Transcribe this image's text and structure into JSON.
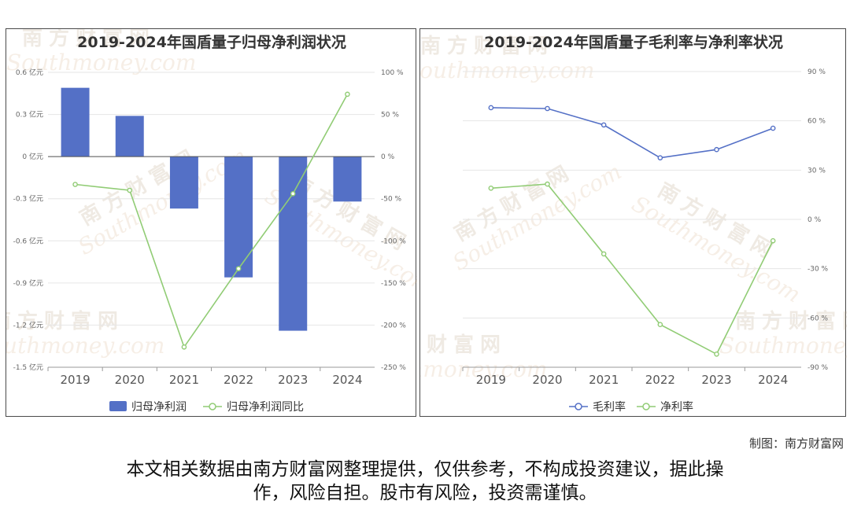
{
  "charts": [
    {
      "title": "2019-2024年国盾量子归母净利润状况",
      "legend_placement": "bottom",
      "colors": {
        "bar": "#5470c6",
        "line": "#91cc75"
      },
      "chart_data": {
        "type": "bar+line",
        "categories": [
          "2019",
          "2020",
          "2021",
          "2022",
          "2023",
          "2024"
        ],
        "series": [
          {
            "name": "归母净利润",
            "type": "bar",
            "axis": "left",
            "values": [
              0.49,
              0.29,
              -0.37,
              -0.86,
              -1.24,
              -0.32
            ]
          },
          {
            "name": "归母净利润同比",
            "type": "line",
            "axis": "right",
            "values": [
              -33,
              -40,
              -226,
              -133,
              -44,
              74
            ]
          }
        ],
        "y_left": {
          "min": -1.5,
          "max": 0.6,
          "ticks": [
            "0.6 亿元",
            "0.3 亿元",
            "0 亿元",
            "-0.3 亿元",
            "-0.6 亿元",
            "-0.9 亿元",
            "-1.2 亿元",
            "-1.5 亿元"
          ]
        },
        "y_right": {
          "min": -250,
          "max": 100,
          "ticks": [
            "100 %",
            "50 %",
            "0 %",
            "-50 %",
            "-100 %",
            "-150 %",
            "-200 %",
            "-250 %"
          ]
        },
        "grid": true
      }
    },
    {
      "title": "2019-2024年国盾量子毛利率与净利率状况",
      "legend_placement": "bottom",
      "colors": {
        "gross": "#5470c6",
        "net": "#91cc75"
      },
      "chart_data": {
        "type": "line",
        "categories": [
          "2019",
          "2020",
          "2021",
          "2022",
          "2023",
          "2024"
        ],
        "series": [
          {
            "name": "毛利率",
            "values": [
              68,
              67.5,
              57.5,
              37.5,
              42.5,
              55.5
            ]
          },
          {
            "name": "净利率",
            "values": [
              19,
              21.5,
              -21,
              -64,
              -82,
              -13
            ]
          }
        ],
        "y_right": {
          "min": -90,
          "max": 90,
          "ticks": [
            "90 %",
            "60 %",
            "30 %",
            "0 %",
            "-30 %",
            "-60 %",
            "-90 %"
          ]
        },
        "grid": true
      }
    }
  ],
  "credit": "制图：南方财富网",
  "disclaimer": [
    "本文相关数据由南方财富网整理提供，仅供参考，不构成投资建议，据此操",
    "作，风险自担。股市有风险，投资需谨慎。"
  ],
  "watermark": {
    "cn": "南方财富网",
    "en": "Southmoney.com"
  }
}
